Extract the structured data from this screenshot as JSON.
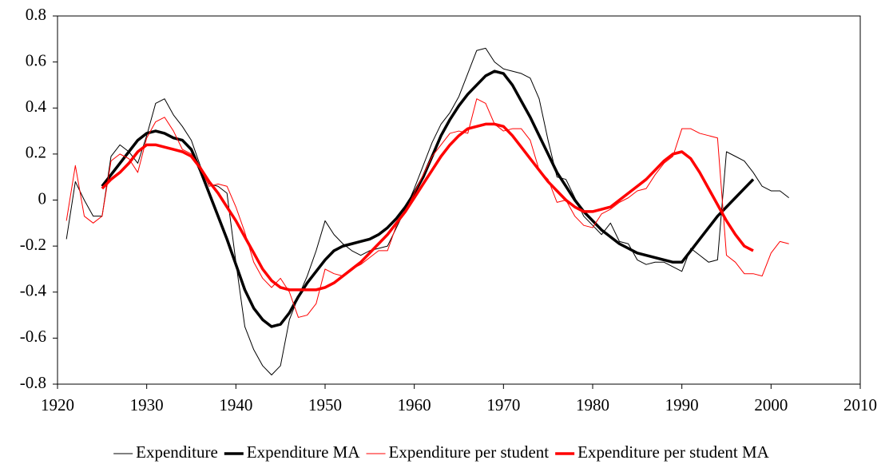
{
  "chart_data": {
    "type": "line",
    "xlim": [
      1920,
      2010
    ],
    "xticks": [
      1920,
      1930,
      1940,
      1950,
      1960,
      1970,
      1980,
      1990,
      2000,
      2010
    ],
    "ylim": [
      -0.8,
      0.8
    ],
    "yticks": [
      -0.8,
      -0.6,
      -0.4,
      -0.2,
      0,
      0.2,
      0.4,
      0.6,
      0.8
    ],
    "grid": false,
    "legend": "bottom",
    "series": [
      {
        "name": "Expenditure",
        "color": "#000000",
        "line_width": 1,
        "x": [
          1921,
          1922,
          1923,
          1924,
          1925,
          1926,
          1927,
          1928,
          1929,
          1930,
          1931,
          1932,
          1933,
          1934,
          1935,
          1936,
          1937,
          1938,
          1939,
          1940,
          1941,
          1942,
          1943,
          1944,
          1945,
          1946,
          1947,
          1948,
          1949,
          1950,
          1951,
          1952,
          1953,
          1954,
          1955,
          1956,
          1957,
          1958,
          1959,
          1960,
          1961,
          1962,
          1963,
          1964,
          1965,
          1966,
          1967,
          1968,
          1969,
          1970,
          1971,
          1972,
          1973,
          1974,
          1975,
          1976,
          1977,
          1978,
          1979,
          1980,
          1981,
          1982,
          1983,
          1984,
          1985,
          1986,
          1987,
          1988,
          1989,
          1990,
          1991,
          1992,
          1993,
          1994,
          1995,
          1996,
          1997,
          1998,
          1999,
          2000,
          2001,
          2002
        ],
        "values": [
          -0.17,
          0.08,
          0.0,
          -0.07,
          -0.07,
          0.19,
          0.24,
          0.21,
          0.16,
          0.28,
          0.42,
          0.44,
          0.37,
          0.32,
          0.26,
          0.15,
          0.07,
          0.06,
          0.03,
          -0.27,
          -0.55,
          -0.65,
          -0.72,
          -0.76,
          -0.72,
          -0.52,
          -0.42,
          -0.33,
          -0.22,
          -0.09,
          -0.15,
          -0.19,
          -0.22,
          -0.24,
          -0.22,
          -0.21,
          -0.2,
          -0.12,
          -0.04,
          0.05,
          0.15,
          0.25,
          0.33,
          0.38,
          0.45,
          0.55,
          0.65,
          0.66,
          0.6,
          0.57,
          0.56,
          0.55,
          0.53,
          0.44,
          0.26,
          0.1,
          0.09,
          0.01,
          -0.07,
          -0.11,
          -0.15,
          -0.1,
          -0.18,
          -0.19,
          -0.26,
          -0.28,
          -0.27,
          -0.27,
          -0.29,
          -0.31,
          -0.21,
          -0.24,
          -0.27,
          -0.26,
          0.21,
          0.19,
          0.17,
          0.12,
          0.06,
          0.04,
          0.04,
          0.01
        ]
      },
      {
        "name": "Expenditure MA",
        "color": "#000000",
        "line_width": 3.5,
        "x": [
          1925,
          1926,
          1927,
          1928,
          1929,
          1930,
          1931,
          1932,
          1933,
          1934,
          1935,
          1936,
          1937,
          1938,
          1939,
          1940,
          1941,
          1942,
          1943,
          1944,
          1945,
          1946,
          1947,
          1948,
          1949,
          1950,
          1951,
          1952,
          1953,
          1954,
          1955,
          1956,
          1957,
          1958,
          1959,
          1960,
          1961,
          1962,
          1963,
          1964,
          1965,
          1966,
          1967,
          1968,
          1969,
          1970,
          1971,
          1972,
          1973,
          1974,
          1975,
          1976,
          1977,
          1978,
          1979,
          1980,
          1981,
          1982,
          1983,
          1984,
          1985,
          1986,
          1987,
          1988,
          1989,
          1990,
          1991,
          1992,
          1993,
          1994,
          1995,
          1996,
          1997,
          1998
        ],
        "values": [
          0.06,
          0.11,
          0.16,
          0.21,
          0.26,
          0.29,
          0.3,
          0.29,
          0.27,
          0.26,
          0.22,
          0.13,
          0.03,
          -0.07,
          -0.17,
          -0.28,
          -0.39,
          -0.47,
          -0.52,
          -0.55,
          -0.54,
          -0.49,
          -0.42,
          -0.36,
          -0.31,
          -0.26,
          -0.22,
          -0.2,
          -0.19,
          -0.18,
          -0.17,
          -0.15,
          -0.12,
          -0.08,
          -0.03,
          0.03,
          0.1,
          0.19,
          0.28,
          0.35,
          0.41,
          0.46,
          0.5,
          0.54,
          0.56,
          0.55,
          0.5,
          0.43,
          0.36,
          0.28,
          0.2,
          0.12,
          0.06,
          0.0,
          -0.05,
          -0.09,
          -0.13,
          -0.16,
          -0.19,
          -0.21,
          -0.23,
          -0.24,
          -0.25,
          -0.26,
          -0.27,
          -0.27,
          -0.22,
          -0.17,
          -0.12,
          -0.07,
          -0.03,
          0.01,
          0.05,
          0.09
        ]
      },
      {
        "name": "Expenditure per student",
        "color": "#ff0000",
        "line_width": 1,
        "x": [
          1921,
          1922,
          1923,
          1924,
          1925,
          1926,
          1927,
          1928,
          1929,
          1930,
          1931,
          1932,
          1933,
          1934,
          1935,
          1936,
          1937,
          1938,
          1939,
          1940,
          1941,
          1942,
          1943,
          1944,
          1945,
          1946,
          1947,
          1948,
          1949,
          1950,
          1951,
          1952,
          1953,
          1954,
          1955,
          1956,
          1957,
          1958,
          1959,
          1960,
          1961,
          1962,
          1963,
          1964,
          1965,
          1966,
          1967,
          1968,
          1969,
          1970,
          1971,
          1972,
          1973,
          1974,
          1975,
          1976,
          1977,
          1978,
          1979,
          1980,
          1981,
          1982,
          1983,
          1984,
          1985,
          1986,
          1987,
          1988,
          1989,
          1990,
          1991,
          1992,
          1993,
          1994,
          1995,
          1996,
          1997,
          1998,
          1999,
          2000,
          2001,
          2002
        ],
        "values": [
          -0.09,
          0.15,
          -0.07,
          -0.1,
          -0.07,
          0.17,
          0.2,
          0.18,
          0.12,
          0.27,
          0.34,
          0.36,
          0.3,
          0.22,
          0.2,
          0.14,
          0.06,
          0.07,
          0.06,
          -0.03,
          -0.14,
          -0.27,
          -0.34,
          -0.38,
          -0.34,
          -0.4,
          -0.51,
          -0.5,
          -0.45,
          -0.3,
          -0.32,
          -0.33,
          -0.3,
          -0.28,
          -0.25,
          -0.22,
          -0.22,
          -0.11,
          -0.05,
          0.03,
          0.11,
          0.19,
          0.24,
          0.29,
          0.3,
          0.29,
          0.44,
          0.42,
          0.33,
          0.3,
          0.31,
          0.31,
          0.26,
          0.13,
          0.09,
          -0.01,
          0.0,
          -0.07,
          -0.11,
          -0.12,
          -0.06,
          -0.04,
          -0.01,
          0.01,
          0.04,
          0.05,
          0.11,
          0.16,
          0.19,
          0.31,
          0.31,
          0.29,
          0.28,
          0.27,
          -0.24,
          -0.27,
          -0.32,
          -0.32,
          -0.33,
          -0.23,
          -0.18,
          -0.19
        ]
      },
      {
        "name": "Expenditure per student MA",
        "color": "#ff0000",
        "line_width": 3.5,
        "x": [
          1925,
          1926,
          1927,
          1928,
          1929,
          1930,
          1931,
          1932,
          1933,
          1934,
          1935,
          1936,
          1937,
          1938,
          1939,
          1940,
          1941,
          1942,
          1943,
          1944,
          1945,
          1946,
          1947,
          1948,
          1949,
          1950,
          1951,
          1952,
          1953,
          1954,
          1955,
          1956,
          1957,
          1958,
          1959,
          1960,
          1961,
          1962,
          1963,
          1964,
          1965,
          1966,
          1967,
          1968,
          1969,
          1970,
          1971,
          1972,
          1973,
          1974,
          1975,
          1976,
          1977,
          1978,
          1979,
          1980,
          1981,
          1982,
          1983,
          1984,
          1985,
          1986,
          1987,
          1988,
          1989,
          1990,
          1991,
          1992,
          1993,
          1994,
          1995,
          1996,
          1997,
          1998
        ],
        "values": [
          0.05,
          0.09,
          0.12,
          0.16,
          0.21,
          0.24,
          0.24,
          0.23,
          0.22,
          0.21,
          0.19,
          0.14,
          0.08,
          0.03,
          -0.03,
          -0.09,
          -0.16,
          -0.23,
          -0.3,
          -0.35,
          -0.38,
          -0.39,
          -0.39,
          -0.39,
          -0.39,
          -0.38,
          -0.36,
          -0.33,
          -0.3,
          -0.27,
          -0.23,
          -0.19,
          -0.15,
          -0.1,
          -0.05,
          0.01,
          0.07,
          0.13,
          0.19,
          0.24,
          0.28,
          0.31,
          0.32,
          0.33,
          0.33,
          0.32,
          0.28,
          0.23,
          0.18,
          0.13,
          0.08,
          0.04,
          0.0,
          -0.03,
          -0.05,
          -0.05,
          -0.04,
          -0.03,
          0.0,
          0.03,
          0.06,
          0.09,
          0.13,
          0.17,
          0.2,
          0.21,
          0.18,
          0.12,
          0.05,
          -0.02,
          -0.09,
          -0.15,
          -0.2,
          -0.22
        ]
      }
    ]
  }
}
